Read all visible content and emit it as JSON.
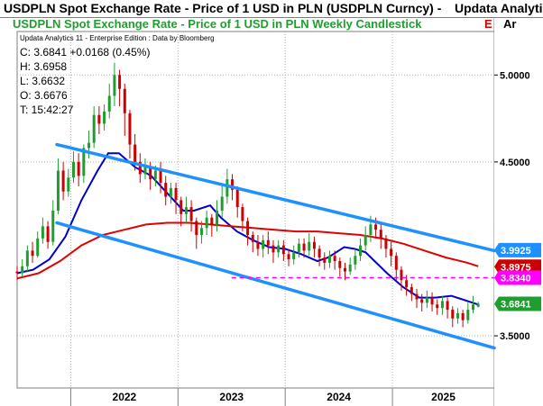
{
  "header": {
    "title": "USDPLN Spot Exchange Rate - Price of 1 USD in PLN (USDPLN Curncy) -",
    "title_suffix": "Updata Analyti",
    "subtitle": "USDPLN Spot Exchange Rate - Price of 1 USD in PLN Weekly Candlestick",
    "subtitle_suffix": "E",
    "corner_label": "Ar",
    "title_color": "#000000",
    "subtitle_color": "#1f9e2f",
    "suffix_color": "#cc0000"
  },
  "edition": "Updata Analytics 11 - Enterprise Edition : Data by Bloomberg",
  "info": {
    "close": "C: 3.6841  +0.0168 (0.45%)",
    "high": "H: 3.6958",
    "low": "L: 3.6632",
    "open": "O: 3.6676",
    "time": "T: 15:42:27"
  },
  "chart_data": {
    "type": "candlestick",
    "title": "USDPLN Spot Exchange Rate - Price of 1 USD in PLN Weekly Candlestick",
    "y_ticks": [
      "5.0000",
      "4.5000",
      "3.5000"
    ],
    "x_ticks": [
      "2022",
      "2023",
      "2024",
      "2025"
    ],
    "ylim": [
      3.2,
      5.25
    ],
    "xlim": [
      2021.5,
      2025.95
    ],
    "price_flags": [
      {
        "label": "3.9925",
        "value": 3.9925,
        "color": "#1e90ff",
        "text": "#ffffff"
      },
      {
        "label": "3.8975",
        "value": 3.8975,
        "color": "#cc0000",
        "text": "#ffffff"
      },
      {
        "label": "3.8340",
        "value": 3.834,
        "color": "#ff00ff",
        "text": "#ffffff"
      },
      {
        "label": "3.6841",
        "value": 3.6841,
        "color": "#1f9e2f",
        "text": "#ffffff"
      }
    ],
    "horizontal_line": {
      "value": 3.834,
      "color": "#ff00ff",
      "style": "dashed"
    },
    "channel": {
      "color": "#1e90ff",
      "upper": [
        [
          2021.87,
          4.6
        ],
        [
          2025.95,
          3.99
        ]
      ],
      "lower": [
        [
          2021.87,
          4.15
        ],
        [
          2025.95,
          3.43
        ]
      ]
    },
    "moving_averages": [
      {
        "color": "#0000cc",
        "points": [
          [
            2021.5,
            3.86
          ],
          [
            2021.65,
            3.88
          ],
          [
            2021.8,
            3.94
          ],
          [
            2021.95,
            4.07
          ],
          [
            2022.1,
            4.28
          ],
          [
            2022.25,
            4.45
          ],
          [
            2022.35,
            4.55
          ],
          [
            2022.45,
            4.55
          ],
          [
            2022.6,
            4.47
          ],
          [
            2022.75,
            4.42
          ],
          [
            2022.9,
            4.32
          ],
          [
            2023.05,
            4.22
          ],
          [
            2023.15,
            4.22
          ],
          [
            2023.3,
            4.25
          ],
          [
            2023.4,
            4.18
          ],
          [
            2023.55,
            4.1
          ],
          [
            2023.7,
            4.05
          ],
          [
            2023.85,
            4.01
          ],
          [
            2024.0,
            4.0
          ],
          [
            2024.15,
            3.97
          ],
          [
            2024.3,
            3.93
          ],
          [
            2024.4,
            3.95
          ],
          [
            2024.55,
            4.01
          ],
          [
            2024.65,
            4.0
          ],
          [
            2024.75,
            3.98
          ],
          [
            2024.85,
            3.92
          ],
          [
            2024.95,
            3.86
          ],
          [
            2025.1,
            3.78
          ],
          [
            2025.25,
            3.72
          ],
          [
            2025.4,
            3.72
          ],
          [
            2025.55,
            3.73
          ],
          [
            2025.7,
            3.7
          ],
          [
            2025.8,
            3.68
          ]
        ]
      },
      {
        "color": "#e00000",
        "points": [
          [
            2021.5,
            3.83
          ],
          [
            2021.7,
            3.86
          ],
          [
            2021.9,
            3.93
          ],
          [
            2022.1,
            4.02
          ],
          [
            2022.3,
            4.08
          ],
          [
            2022.5,
            4.11
          ],
          [
            2022.7,
            4.14
          ],
          [
            2022.9,
            4.15
          ],
          [
            2023.1,
            4.15
          ],
          [
            2023.3,
            4.14
          ],
          [
            2023.5,
            4.13
          ],
          [
            2023.7,
            4.12
          ],
          [
            2023.9,
            4.11
          ],
          [
            2024.1,
            4.1
          ],
          [
            2024.3,
            4.1
          ],
          [
            2024.5,
            4.09
          ],
          [
            2024.7,
            4.08
          ],
          [
            2024.9,
            4.06
          ],
          [
            2025.1,
            4.03
          ],
          [
            2025.3,
            3.99
          ],
          [
            2025.5,
            3.95
          ],
          [
            2025.7,
            3.92
          ],
          [
            2025.8,
            3.9
          ]
        ]
      }
    ],
    "candles_approx": [
      [
        3.87,
        3.86,
        3.9,
        3.82
      ],
      [
        3.86,
        3.9,
        3.94,
        3.84
      ],
      [
        3.9,
        3.99,
        4.02,
        3.87
      ],
      [
        3.99,
        3.96,
        4.04,
        3.92
      ],
      [
        3.96,
        4.06,
        4.1,
        3.95
      ],
      [
        4.06,
        4.13,
        4.18,
        4.03
      ],
      [
        4.13,
        4.04,
        4.16,
        4.0
      ],
      [
        4.04,
        4.22,
        4.28,
        4.02
      ],
      [
        4.22,
        4.45,
        4.52,
        4.2
      ],
      [
        4.45,
        4.33,
        4.5,
        4.28
      ],
      [
        4.33,
        4.41,
        4.46,
        4.3
      ],
      [
        4.41,
        4.5,
        4.56,
        4.38
      ],
      [
        4.5,
        4.42,
        4.55,
        4.36
      ],
      [
        4.42,
        4.58,
        4.6,
        4.38
      ],
      [
        4.58,
        4.61,
        4.68,
        4.52
      ],
      [
        4.61,
        4.77,
        4.82,
        4.58
      ],
      [
        4.77,
        4.72,
        4.82,
        4.66
      ],
      [
        4.72,
        4.79,
        4.83,
        4.68
      ],
      [
        4.79,
        4.88,
        4.95,
        4.75
      ],
      [
        4.88,
        5.0,
        5.07,
        4.82
      ],
      [
        5.0,
        4.92,
        5.03,
        4.82
      ],
      [
        4.92,
        4.78,
        4.95,
        4.65
      ],
      [
        4.78,
        4.6,
        4.8,
        4.52
      ],
      [
        4.6,
        4.5,
        4.66,
        4.45
      ],
      [
        4.5,
        4.43,
        4.55,
        4.38
      ],
      [
        4.43,
        4.47,
        4.52,
        4.4
      ],
      [
        4.47,
        4.4,
        4.5,
        4.34
      ],
      [
        4.4,
        4.45,
        4.48,
        4.36
      ],
      [
        4.45,
        4.38,
        4.5,
        4.32
      ],
      [
        4.38,
        4.3,
        4.42,
        4.25
      ],
      [
        4.3,
        4.35,
        4.38,
        4.26
      ],
      [
        4.35,
        4.28,
        4.38,
        4.2
      ],
      [
        4.28,
        4.2,
        4.3,
        4.13
      ],
      [
        4.2,
        4.24,
        4.3,
        4.15
      ],
      [
        4.24,
        4.16,
        4.28,
        4.1
      ],
      [
        4.16,
        4.08,
        4.18,
        4.0
      ],
      [
        4.08,
        4.12,
        4.16,
        4.03
      ],
      [
        4.12,
        4.18,
        4.22,
        4.08
      ],
      [
        4.18,
        4.14,
        4.2,
        4.07
      ],
      [
        4.14,
        4.22,
        4.28,
        4.1
      ],
      [
        4.22,
        4.3,
        4.36,
        4.18
      ],
      [
        4.3,
        4.4,
        4.46,
        4.26
      ],
      [
        4.4,
        4.34,
        4.43,
        4.28
      ],
      [
        4.34,
        4.24,
        4.36,
        4.18
      ],
      [
        4.24,
        4.16,
        4.26,
        4.1
      ],
      [
        4.16,
        4.08,
        4.18,
        4.02
      ],
      [
        4.08,
        4.04,
        4.1,
        3.98
      ],
      [
        4.04,
        4.0,
        4.08,
        3.96
      ],
      [
        4.0,
        4.05,
        4.08,
        3.95
      ],
      [
        4.05,
        4.02,
        4.1,
        3.97
      ],
      [
        4.02,
        3.98,
        4.05,
        3.92
      ],
      [
        3.98,
        4.02,
        4.05,
        3.95
      ],
      [
        4.02,
        3.97,
        4.05,
        3.93
      ],
      [
        3.97,
        3.94,
        4.0,
        3.9
      ],
      [
        3.94,
        3.98,
        4.02,
        3.91
      ],
      [
        3.98,
        4.03,
        4.06,
        3.95
      ],
      [
        4.03,
        3.99,
        4.06,
        3.95
      ],
      [
        3.99,
        4.04,
        4.09,
        3.96
      ],
      [
        4.04,
        4.0,
        4.07,
        3.95
      ],
      [
        4.0,
        3.95,
        4.02,
        3.9
      ],
      [
        3.95,
        3.92,
        3.98,
        3.88
      ],
      [
        3.92,
        3.96,
        3.99,
        3.89
      ],
      [
        3.96,
        3.93,
        3.99,
        3.88
      ],
      [
        3.93,
        3.89,
        3.95,
        3.84
      ],
      [
        3.89,
        3.87,
        3.92,
        3.82
      ],
      [
        3.87,
        3.91,
        3.95,
        3.85
      ],
      [
        3.91,
        3.96,
        4.0,
        3.88
      ],
      [
        3.96,
        4.02,
        4.06,
        3.93
      ],
      [
        4.02,
        4.08,
        4.13,
        3.99
      ],
      [
        4.08,
        4.14,
        4.19,
        4.04
      ],
      [
        4.14,
        4.11,
        4.18,
        4.06
      ],
      [
        4.11,
        4.06,
        4.14,
        4.0
      ],
      [
        4.06,
        4.0,
        4.08,
        3.95
      ],
      [
        4.0,
        3.96,
        4.04,
        3.9
      ],
      [
        3.96,
        3.88,
        3.98,
        3.82
      ],
      [
        3.88,
        3.82,
        3.9,
        3.76
      ],
      [
        3.82,
        3.78,
        3.85,
        3.73
      ],
      [
        3.78,
        3.74,
        3.8,
        3.7
      ],
      [
        3.74,
        3.71,
        3.77,
        3.66
      ],
      [
        3.71,
        3.69,
        3.74,
        3.64
      ],
      [
        3.69,
        3.72,
        3.76,
        3.66
      ],
      [
        3.72,
        3.68,
        3.75,
        3.64
      ],
      [
        3.68,
        3.66,
        3.71,
        3.62
      ],
      [
        3.66,
        3.7,
        3.73,
        3.62
      ],
      [
        3.7,
        3.65,
        3.72,
        3.6
      ],
      [
        3.65,
        3.6,
        3.67,
        3.55
      ],
      [
        3.6,
        3.63,
        3.66,
        3.57
      ],
      [
        3.63,
        3.59,
        3.65,
        3.55
      ],
      [
        3.59,
        3.65,
        3.69,
        3.57
      ],
      [
        3.65,
        3.68,
        3.73,
        3.63
      ],
      [
        3.6676,
        3.6841,
        3.6958,
        3.6632
      ]
    ]
  }
}
